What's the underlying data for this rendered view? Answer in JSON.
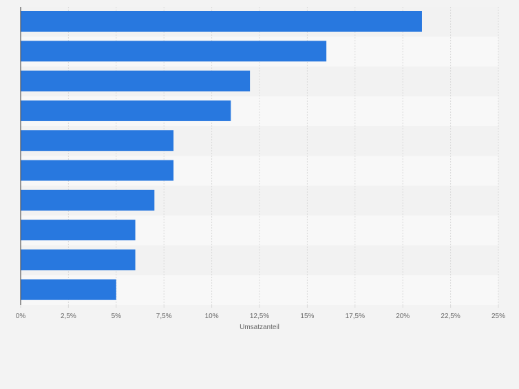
{
  "chart_data": {
    "type": "bar",
    "orientation": "horizontal",
    "values": [
      21,
      16,
      12,
      11,
      8,
      8,
      7,
      6,
      6,
      5
    ],
    "xlabel": "Umsatzanteil",
    "xlim": [
      0,
      25
    ],
    "ticks": [
      {
        "value": 0,
        "label": "0%"
      },
      {
        "value": 2.5,
        "label": "2,5%"
      },
      {
        "value": 5,
        "label": "5%"
      },
      {
        "value": 7.5,
        "label": "7,5%"
      },
      {
        "value": 10,
        "label": "10%"
      },
      {
        "value": 12.5,
        "label": "12,5%"
      },
      {
        "value": 15,
        "label": "15%"
      },
      {
        "value": 17.5,
        "label": "17,5%"
      },
      {
        "value": 20,
        "label": "20%"
      },
      {
        "value": 22.5,
        "label": "22,5%"
      },
      {
        "value": 25,
        "label": "25%"
      }
    ],
    "grid": true,
    "colors": {
      "bar": "#2878df",
      "band_dark": "#f2f2f2",
      "band_light": "#f8f8f8",
      "grid": "#dadada",
      "axis": "#555555",
      "text": "#666666"
    }
  }
}
